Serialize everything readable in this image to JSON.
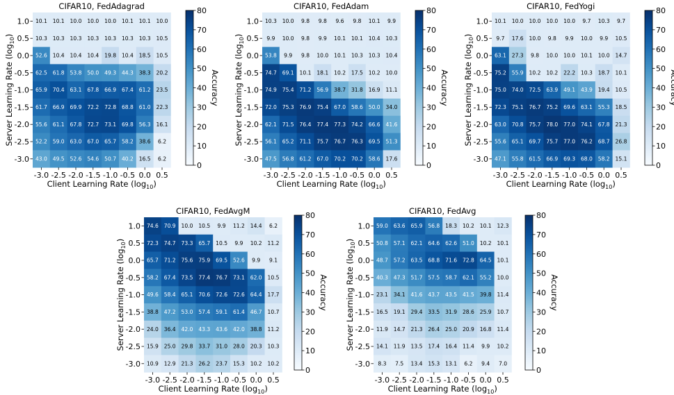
{
  "figure": {
    "x_axis_label_prefix": "Client Learning Rate (log",
    "y_axis_label_prefix": "Server Learning Rate (log",
    "log_base": "10",
    "colorbar_label": "Accuracy"
  },
  "chart_data": [
    {
      "type": "heatmap",
      "title": "CIFAR10, FedAdagrad",
      "xlabel": "Client Learning Rate (log10)",
      "ylabel": "Server Learning Rate (log10)",
      "x_ticks": [
        "-3.0",
        "-2.5",
        "-2.0",
        "-1.5",
        "-1.0",
        "-0.5",
        "0.0",
        "0.5"
      ],
      "y_ticks": [
        "1.0",
        "0.5",
        "0.0",
        "-0.5",
        "-1.0",
        "-1.5",
        "-2.0",
        "-2.5",
        "-3.0"
      ],
      "values": [
        [
          10.1,
          10.1,
          10.0,
          10.0,
          10.0,
          10.1,
          10.1,
          10.0
        ],
        [
          10.3,
          10.3,
          10.3,
          10.3,
          10.3,
          10.3,
          10.3,
          10.5
        ],
        [
          52.6,
          10.4,
          10.4,
          10.4,
          19.8,
          10.4,
          18.5,
          10.5
        ],
        [
          62.5,
          61.8,
          53.8,
          50.0,
          49.3,
          44.3,
          38.3,
          20.2
        ],
        [
          65.9,
          70.4,
          63.1,
          67.8,
          66.9,
          67.4,
          61.2,
          23.5
        ],
        [
          61.7,
          66.9,
          69.9,
          72.2,
          72.8,
          68.8,
          61.0,
          22.3
        ],
        [
          55.6,
          61.1,
          67.8,
          72.7,
          73.1,
          69.8,
          56.3,
          16.1
        ],
        [
          52.2,
          59.0,
          63.0,
          67.0,
          65.7,
          58.2,
          38.6,
          6.2
        ],
        [
          43.0,
          49.5,
          52.6,
          54.6,
          50.7,
          40.2,
          16.5,
          6.2
        ]
      ],
      "colorbar": {
        "label": "Accuracy",
        "min": 0,
        "max": 80,
        "ticks": [
          0,
          10,
          20,
          30,
          40,
          50,
          60,
          70,
          80
        ]
      }
    },
    {
      "type": "heatmap",
      "title": "CIFAR10, FedAdam",
      "xlabel": "Client Learning Rate (log10)",
      "ylabel": "Server Learning Rate (log10)",
      "x_ticks": [
        "-3.0",
        "-2.5",
        "-2.0",
        "-1.5",
        "-1.0",
        "-0.5",
        "0.0",
        "0.5"
      ],
      "y_ticks": [
        "1.0",
        "0.5",
        "0.0",
        "-0.5",
        "-1.0",
        "-1.5",
        "-2.0",
        "-2.5",
        "-3.0"
      ],
      "values": [
        [
          10.3,
          10.0,
          9.8,
          9.8,
          9.6,
          9.8,
          10.1,
          9.9
        ],
        [
          9.9,
          10.0,
          9.8,
          9.9,
          10.1,
          10.1,
          10.4,
          10.3
        ],
        [
          53.8,
          9.9,
          9.8,
          10.0,
          10.1,
          10.3,
          10.3,
          10.4
        ],
        [
          74.7,
          69.1,
          10.1,
          18.1,
          10.2,
          17.5,
          10.2,
          10.0
        ],
        [
          74.9,
          75.4,
          71.2,
          56.9,
          38.7,
          31.8,
          16.9,
          11.1
        ],
        [
          72.0,
          75.3,
          76.9,
          75.4,
          67.0,
          58.6,
          50.0,
          34.0
        ],
        [
          62.1,
          71.5,
          76.4,
          77.4,
          77.3,
          74.2,
          66.6,
          41.6
        ],
        [
          56.1,
          65.2,
          71.1,
          75.7,
          76.7,
          76.3,
          69.5,
          51.3
        ],
        [
          47.5,
          56.8,
          61.2,
          67.0,
          70.2,
          70.2,
          58.6,
          17.6
        ]
      ],
      "colorbar": {
        "label": "Accuracy",
        "min": 0,
        "max": 80,
        "ticks": [
          0,
          10,
          20,
          30,
          40,
          50,
          60,
          70,
          80
        ]
      }
    },
    {
      "type": "heatmap",
      "title": "CIFAR10, FedYogi",
      "xlabel": "Client Learning Rate (log10)",
      "ylabel": "Server Learning Rate (log10)",
      "x_ticks": [
        "-3.0",
        "-2.5",
        "-2.0",
        "-1.5",
        "-1.0",
        "-0.5",
        "0.0",
        "0.5"
      ],
      "y_ticks": [
        "1.0",
        "0.5",
        "0.0",
        "-0.5",
        "-1.0",
        "-1.5",
        "-2.0",
        "-2.5",
        "-3.0"
      ],
      "values": [
        [
          10.1,
          10.0,
          10.0,
          10.0,
          10.0,
          9.7,
          10.3,
          9.7
        ],
        [
          9.7,
          17.6,
          10.0,
          9.8,
          9.9,
          10.0,
          9.9,
          10.5
        ],
        [
          63.1,
          27.3,
          9.8,
          10.0,
          10.0,
          10.1,
          10.0,
          14.7
        ],
        [
          75.2,
          55.9,
          10.2,
          10.2,
          22.2,
          10.3,
          18.7,
          10.1
        ],
        [
          75.0,
          74.0,
          72.5,
          63.9,
          49.1,
          43.9,
          19.4,
          10.5
        ],
        [
          72.3,
          75.1,
          76.7,
          75.2,
          69.6,
          63.1,
          55.3,
          18.5
        ],
        [
          63.0,
          70.8,
          75.7,
          78.0,
          77.0,
          74.1,
          67.8,
          21.3
        ],
        [
          55.6,
          65.1,
          69.7,
          75.7,
          77.0,
          76.2,
          68.7,
          26.8
        ],
        [
          47.1,
          55.8,
          61.5,
          66.9,
          69.3,
          68.0,
          58.2,
          15.1
        ]
      ],
      "colorbar": {
        "label": "Accuracy",
        "min": 0,
        "max": 80,
        "ticks": [
          0,
          10,
          20,
          30,
          40,
          50,
          60,
          70,
          80
        ]
      }
    },
    {
      "type": "heatmap",
      "title": "CIFAR10, FedAvgM",
      "xlabel": "Client Learning Rate (log10)",
      "ylabel": "Server Learning Rate (log10)",
      "x_ticks": [
        "-3.0",
        "-2.5",
        "-2.0",
        "-1.5",
        "-1.0",
        "-0.5",
        "0.0",
        "0.5"
      ],
      "y_ticks": [
        "1.0",
        "0.5",
        "0.0",
        "-0.5",
        "-1.0",
        "-1.5",
        "-2.0",
        "-2.5",
        "-3.0"
      ],
      "values": [
        [
          74.6,
          70.9,
          10.0,
          10.5,
          9.9,
          11.2,
          14.4,
          6.2
        ],
        [
          72.3,
          74.7,
          73.3,
          65.7,
          10.5,
          9.9,
          10.2,
          11.2
        ],
        [
          65.7,
          71.2,
          75.6,
          75.9,
          69.5,
          52.6,
          9.9,
          9.1
        ],
        [
          58.2,
          67.4,
          73.5,
          77.4,
          76.7,
          73.1,
          62.0,
          10.5
        ],
        [
          49.6,
          58.4,
          65.1,
          70.6,
          72.6,
          72.6,
          64.4,
          17.7
        ],
        [
          38.8,
          47.2,
          53.0,
          57.4,
          59.1,
          61.4,
          46.7,
          10.7
        ],
        [
          24.0,
          36.4,
          42.0,
          43.3,
          43.6,
          42.0,
          38.8,
          11.2
        ],
        [
          15.9,
          25.0,
          29.8,
          33.7,
          31.0,
          28.0,
          20.3,
          10.3
        ],
        [
          10.9,
          12.9,
          21.3,
          26.2,
          23.7,
          15.3,
          10.2,
          10.2
        ]
      ],
      "colorbar": {
        "label": "Accuracy",
        "min": 0,
        "max": 80,
        "ticks": [
          0,
          10,
          20,
          30,
          40,
          50,
          60,
          70,
          80
        ]
      }
    },
    {
      "type": "heatmap",
      "title": "CIFAR10, FedAvg",
      "xlabel": "Client Learning Rate (log10)",
      "ylabel": "Server Learning Rate (log10)",
      "x_ticks": [
        "-3.0",
        "-2.5",
        "-2.0",
        "-1.5",
        "-1.0",
        "-0.5",
        "0.0",
        "0.5"
      ],
      "y_ticks": [
        "1.0",
        "0.5",
        "0.0",
        "-0.5",
        "-1.0",
        "-1.5",
        "-2.0",
        "-2.5",
        "-3.0"
      ],
      "values": [
        [
          59.0,
          63.6,
          65.9,
          56.8,
          18.3,
          10.2,
          10.1,
          12.3
        ],
        [
          50.8,
          57.1,
          62.1,
          64.6,
          62.6,
          51.0,
          10.2,
          10.1
        ],
        [
          48.7,
          57.2,
          63.5,
          68.8,
          71.6,
          72.8,
          64.5,
          10.1
        ],
        [
          40.3,
          47.3,
          51.7,
          57.5,
          58.7,
          62.1,
          55.2,
          10.0
        ],
        [
          23.1,
          34.1,
          41.6,
          43.7,
          43.5,
          41.5,
          39.8,
          11.4
        ],
        [
          16.5,
          19.1,
          29.4,
          33.5,
          31.9,
          28.6,
          25.9,
          10.7
        ],
        [
          11.9,
          14.7,
          21.3,
          26.4,
          25.0,
          20.9,
          16.8,
          11.4
        ],
        [
          14.1,
          11.9,
          13.5,
          17.4,
          16.4,
          11.4,
          9.9,
          10.2
        ],
        [
          8.3,
          7.5,
          13.4,
          15.3,
          13.1,
          6.2,
          9.4,
          7.0
        ]
      ],
      "colorbar": {
        "label": "Accuracy",
        "min": 0,
        "max": 80,
        "ticks": [
          0,
          10,
          20,
          30,
          40,
          50,
          60,
          70,
          80
        ]
      }
    }
  ]
}
